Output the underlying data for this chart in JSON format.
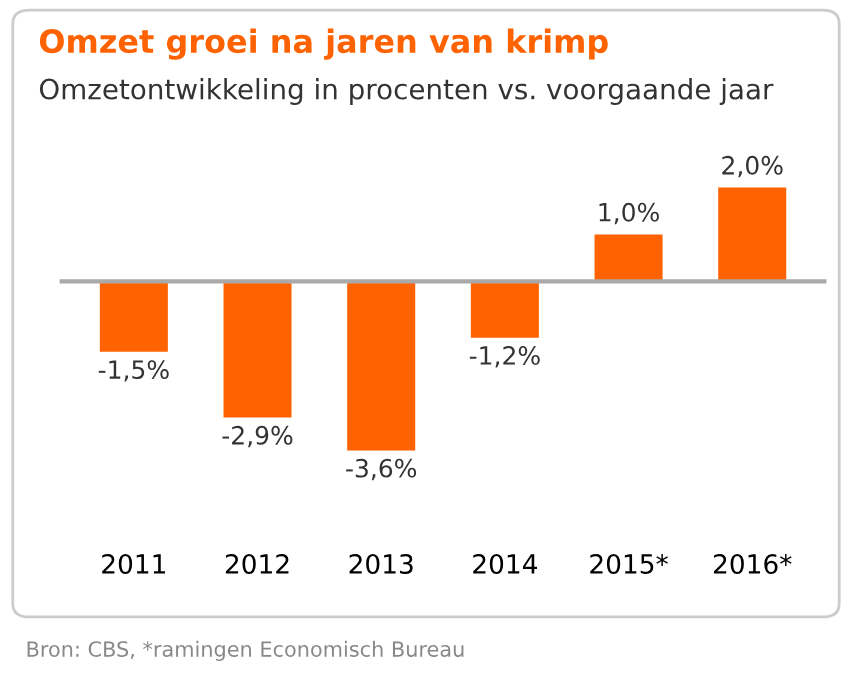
{
  "chart_data": {
    "type": "bar",
    "title": "Omzet groei na jaren van krimp",
    "subtitle": "Omzetontwikkeling in procenten vs. voorgaande jaar",
    "categories": [
      "2011",
      "2012",
      "2013",
      "2014",
      "2015*",
      "2016*"
    ],
    "values": [
      -1.5,
      -2.9,
      -3.6,
      -1.2,
      1.0,
      2.0
    ],
    "value_labels": [
      "-1,5%",
      "-2,9%",
      "-3,6%",
      "-1,2%",
      "1,0%",
      "2,0%"
    ],
    "color": "#ff6200",
    "annotations": [
      "Bron: CBS, *ramingen Economisch Bureau"
    ],
    "legend": false
  }
}
